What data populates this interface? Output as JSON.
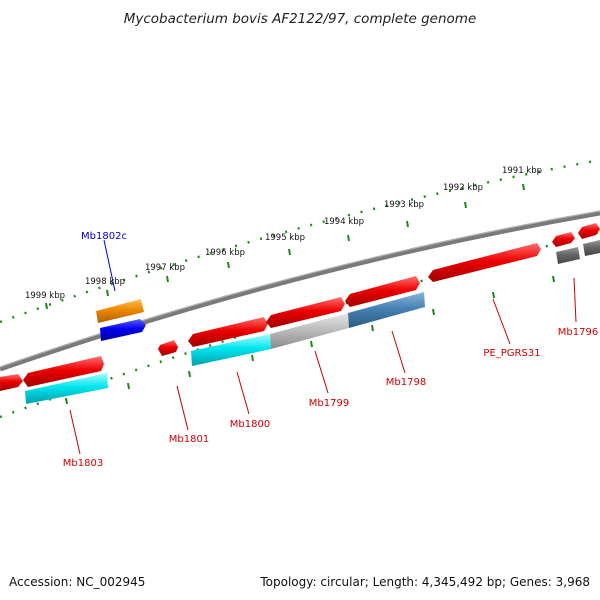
{
  "title": "Mycobacterium bovis AF2122/97, complete genome",
  "footer": {
    "accession": "Accession: NC_002945",
    "summary": "Topology: circular; Length: 4,345,492 bp; Genes: 3,968"
  },
  "scale_labels": [
    "1991 kbp",
    "1992 kbp",
    "1993 kbp",
    "1994 kbp",
    "1995 kbp",
    "1996 kbp",
    "1997 kbp",
    "1998 kbp",
    "1999 kbp"
  ],
  "gene_labels": {
    "mb1802c": "Mb1802c",
    "mb1803": "Mb1803",
    "mb1801": "Mb1801",
    "mb1800": "Mb1800",
    "mb1799": "Mb1799",
    "mb1798": "Mb1798",
    "pe_pgrs31": "PE_PGRS31",
    "mb1796": "Mb1796"
  },
  "colors": {
    "backbone": "#7a7a7a",
    "scale_ticks": "#1a8a1a",
    "gene_red": "#ee0000",
    "gene_cyan": "#00e5ee",
    "gene_gray": "#b8b8b8",
    "gene_steelblue": "#4682b4",
    "gene_orange": "#ee8800",
    "gene_blue": "#0000ee",
    "gene_darkgray": "#666666",
    "label_red": "#cc0000",
    "label_blue": "#0000cc"
  }
}
